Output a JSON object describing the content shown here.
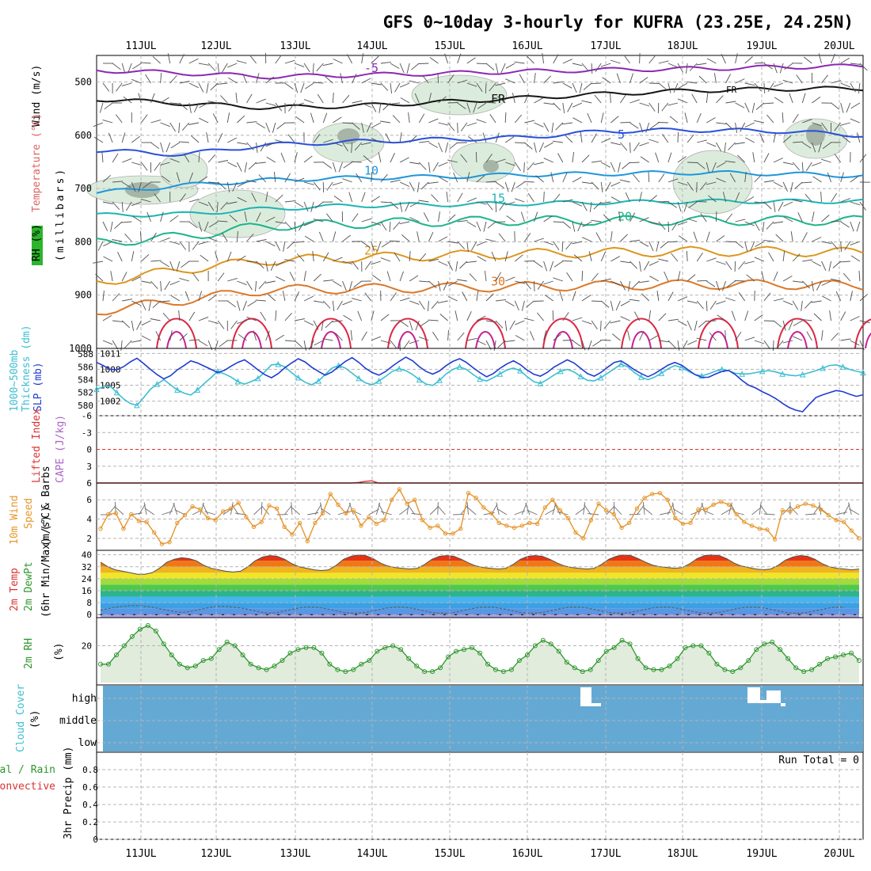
{
  "title": "GFS 0~10day 3-hourly for KUFRA (23.25E, 24.25N)",
  "days": [
    "11JUL",
    "12JUL",
    "13JUL",
    "14JUL",
    "15JUL",
    "16JUL",
    "17JUL",
    "18JUL",
    "19JUL",
    "20JUL"
  ],
  "colors": {
    "grid": "#b4b4b4",
    "slp": "#1e3cd2",
    "thickness": "#3cbed2",
    "wind_speed": "#e6962d",
    "rh": "#2d962d",
    "rh_fill": "#e1ecdc",
    "cloud_bg": "#64a9d4",
    "zero_line": "#dc3232",
    "li": "#dc3232",
    "barb": "#505050"
  },
  "labels": {
    "upper_axis": "(millibars)",
    "upper_wind": "Wind (m/s)",
    "upper_temp": "Temperature (°C)",
    "upper_rh": "RH (%)",
    "thick_a": "1000~500mb",
    "thick_b": "Thickness (dm)",
    "slp": "SLP (mb)",
    "li_a": "Lifted Index",
    "li_b": "CAPE (J/kg)",
    "wind_a": "10m Wind",
    "wind_b": "Speed",
    "wind_c": "(m/s) & Barbs",
    "temp_a": "2m Temp",
    "temp_b": "2m DewPt",
    "temp_c": "(6hr Min/Max) (°C)",
    "rh2_a": "2m RH",
    "rh2_b": "(%)",
    "cloud_a": "Cloud Cover",
    "cloud_b": "(%)",
    "precip_a": "Total / Rain",
    "precip_b": "Convective",
    "precip_c": "3hr Precip (mm)",
    "run_total": "Run Total = 0",
    "freezing": "FR"
  },
  "chart_data": [
    {
      "type": "line",
      "panel": "upper_air_cross_section",
      "ylabel": "(millibars)",
      "yticks": [
        500,
        600,
        700,
        800,
        900,
        1000
      ],
      "ylim": [
        1000,
        450
      ],
      "x": [
        "11JUL",
        "12JUL",
        "13JUL",
        "14JUL",
        "15JUL",
        "16JUL",
        "17JUL",
        "18JUL",
        "19JUL",
        "20JUL"
      ],
      "isotherms": [
        {
          "label": "-5",
          "color": "#8c28b4",
          "pressure": [
            478,
            483,
            490,
            487,
            484,
            480,
            477,
            475,
            472,
            470
          ]
        },
        {
          "label": "FR",
          "color": "#141414",
          "pressure": [
            532,
            540,
            548,
            545,
            538,
            530,
            522,
            516,
            513,
            512
          ]
        },
        {
          "label": "5",
          "color": "#2850dc",
          "pressure": [
            628,
            636,
            618,
            612,
            608,
            604,
            592,
            590,
            592,
            600
          ]
        },
        {
          "label": "10",
          "color": "#1e96dc",
          "pressure": [
            708,
            694,
            684,
            680,
            678,
            674,
            672,
            670,
            672,
            676
          ]
        },
        {
          "label": "15",
          "color": "#1eb4b4",
          "pressure": [
            750,
            748,
            738,
            732,
            730,
            728,
            726,
            724,
            724,
            724
          ]
        },
        {
          "label": "20",
          "color": "#1eb48c",
          "pressure": [
            802,
            790,
            770,
            766,
            762,
            760,
            760,
            760,
            760,
            760
          ]
        },
        {
          "label": "25",
          "color": "#dc961e",
          "pressure": [
            876,
            852,
            835,
            830,
            826,
            822,
            820,
            818,
            818,
            820
          ]
        },
        {
          "label": "30",
          "color": "#dc7828",
          "pressure": [
            930,
            910,
            890,
            888,
            886,
            884,
            882,
            880,
            880,
            882
          ]
        }
      ],
      "rh_contours": [
        "10",
        "30"
      ]
    },
    {
      "type": "line",
      "panel": "thickness_slp",
      "series": [
        {
          "name": "1000~500mb Thickness (dm)",
          "yticks": [
            580,
            582,
            584,
            586,
            588
          ],
          "values": [
            582.5,
            582.9,
            583.0,
            582.0,
            581.0,
            580.3,
            580.0,
            581.2,
            582.5,
            583.3,
            584.0,
            583.2,
            582.4,
            581.9,
            581.6,
            582.4,
            583.4,
            584.3,
            585.3,
            584.9,
            584.4,
            583.7,
            583.3,
            583.7,
            584.2,
            585.2,
            586.3,
            586.4,
            586.0,
            585.1,
            584.3,
            583.6,
            583.2,
            583.8,
            584.8,
            585.8,
            586.2,
            585.8,
            585.0,
            584.2,
            583.5,
            583.2,
            583.8,
            584.5,
            585.3,
            585.7,
            585.4,
            584.8,
            584.0,
            583.3,
            583.1,
            583.9,
            584.9,
            585.6,
            586.0,
            585.6,
            584.8,
            584.1,
            583.8,
            584.3,
            584.9,
            585.5,
            585.8,
            585.4,
            584.5,
            583.7,
            583.4,
            584.0,
            584.7,
            585.3,
            585.6,
            585.2,
            584.5,
            583.9,
            583.8,
            584.3,
            585.0,
            585.7,
            586.4,
            586.0,
            585.1,
            584.4,
            584.0,
            584.4,
            585.0,
            585.7,
            586.2,
            585.9,
            585.3,
            584.8,
            584.6,
            584.9,
            585.3,
            585.6,
            585.4,
            585.0,
            584.9,
            584.9,
            585.1,
            585.3,
            585.4,
            585.2,
            584.9,
            584.7,
            584.6,
            584.8,
            585.1,
            585.4,
            585.8,
            586.2,
            586.3,
            586.0,
            585.6,
            585.3,
            585.1
          ]
        },
        {
          "name": "SLP (mb)",
          "yticks": [
            1002,
            1005,
            1008,
            1011
          ],
          "values": [
            1009.3,
            1008.7,
            1008.0,
            1007.9,
            1008.5,
            1009.4,
            1010.1,
            1009.1,
            1008.0,
            1007.0,
            1006.2,
            1006.8,
            1007.9,
            1008.7,
            1009.6,
            1009.2,
            1008.6,
            1008.0,
            1007.4,
            1007.8,
            1008.6,
            1009.3,
            1009.8,
            1008.9,
            1007.9,
            1007.0,
            1006.4,
            1007.2,
            1008.3,
            1009.2,
            1010.0,
            1009.4,
            1008.4,
            1007.6,
            1006.9,
            1007.5,
            1008.5,
            1009.5,
            1010.2,
            1009.3,
            1008.2,
            1007.4,
            1006.9,
            1007.6,
            1008.6,
            1009.5,
            1010.3,
            1009.6,
            1008.5,
            1007.6,
            1007.1,
            1007.7,
            1008.7,
            1009.5,
            1010.0,
            1009.3,
            1008.3,
            1007.4,
            1006.6,
            1007.2,
            1008.2,
            1009.0,
            1009.6,
            1008.9,
            1007.9,
            1007.1,
            1006.7,
            1007.4,
            1008.4,
            1009.1,
            1009.8,
            1009.2,
            1008.2,
            1007.2,
            1006.7,
            1007.4,
            1008.4,
            1009.3,
            1009.6,
            1008.8,
            1007.9,
            1007.2,
            1006.6,
            1007.2,
            1008.0,
            1008.8,
            1009.3,
            1008.8,
            1007.9,
            1007.0,
            1006.5,
            1006.5,
            1007.1,
            1007.6,
            1007.8,
            1007.0,
            1005.9,
            1005.0,
            1004.5,
            1003.8,
            1003.2,
            1002.5,
            1001.6,
            1000.8,
            1000.3,
            1000.0,
            1001.4,
            1002.7,
            1003.2,
            1003.6,
            1004.0,
            1003.8,
            1003.3,
            1002.9,
            1003.2
          ]
        }
      ]
    },
    {
      "type": "line",
      "panel": "lifted_index_cape",
      "yticks": [
        -6,
        -3,
        0,
        3,
        6
      ],
      "ylim": [
        6,
        -6
      ],
      "series": [
        {
          "name": "Lifted Index",
          "values": [
            6,
            6,
            6,
            6,
            6,
            6,
            6,
            6,
            6,
            6,
            6,
            6,
            6,
            6,
            6,
            6,
            6,
            6,
            6,
            6,
            6,
            6,
            6,
            6,
            6,
            6,
            6,
            6,
            6,
            6,
            6,
            6,
            6,
            6,
            6,
            6,
            6,
            6,
            6,
            6,
            5.9,
            5.7,
            5.6,
            6,
            6,
            6,
            6,
            6,
            6,
            6,
            6,
            6,
            6,
            6,
            6,
            6,
            6,
            6,
            6,
            6,
            6,
            6,
            6,
            6,
            6,
            6,
            6,
            6,
            6,
            6,
            6,
            6,
            6,
            6,
            6,
            6,
            6,
            6,
            6,
            6,
            6,
            6,
            6,
            6,
            6,
            6,
            6,
            6,
            6,
            6,
            6,
            6,
            6,
            6,
            6,
            6,
            6,
            6,
            6,
            6,
            6,
            6,
            6,
            6,
            6,
            6,
            6,
            6,
            6,
            6,
            6,
            6,
            6,
            6,
            6,
            6,
            6,
            6
          ]
        }
      ]
    },
    {
      "type": "line",
      "panel": "wind_10m",
      "ylabel": "(m/s)",
      "yticks": [
        2,
        4,
        6
      ],
      "ylim": [
        1,
        7.5
      ],
      "series": [
        {
          "name": "10m Wind Speed",
          "values": [
            3.0,
            4.5,
            4.6,
            3.0,
            4.5,
            3.8,
            3.7,
            2.6,
            1.4,
            1.6,
            3.6,
            4.4,
            5.3,
            5.0,
            4.1,
            3.9,
            4.8,
            5.1,
            5.7,
            4.2,
            3.2,
            3.7,
            5.4,
            5.1,
            3.2,
            2.4,
            3.6,
            1.7,
            3.6,
            4.6,
            6.6,
            5.5,
            4.6,
            4.9,
            3.3,
            4.2,
            3.5,
            3.9,
            6.0,
            7.1,
            5.6,
            6.0,
            3.9,
            3.1,
            3.3,
            2.5,
            2.5,
            3.0,
            6.7,
            6.2,
            5.2,
            4.6,
            3.6,
            3.3,
            3.1,
            3.3,
            3.6,
            3.5,
            5.2,
            6.0,
            4.9,
            4.1,
            2.6,
            2.0,
            3.9,
            5.6,
            4.9,
            4.5,
            3.1,
            3.6,
            5.1,
            6.2,
            6.6,
            6.7,
            6.0,
            4.1,
            3.5,
            3.6,
            5.0,
            5.0,
            5.5,
            5.8,
            5.5,
            4.5,
            3.7,
            3.3,
            3.0,
            2.9,
            1.9,
            4.9,
            4.8,
            5.3,
            5.6,
            5.4,
            5.0,
            4.4,
            3.9,
            3.7,
            2.8,
            2.0
          ]
        }
      ]
    },
    {
      "type": "area",
      "panel": "temp_2m",
      "ylabel": "(°C)",
      "yticks": [
        0,
        8,
        16,
        24,
        32,
        40
      ],
      "ylim": [
        -2,
        43
      ],
      "series": [
        {
          "name": "2m Temp",
          "values": [
            35,
            32,
            30,
            29,
            28,
            27,
            27,
            28,
            31,
            35,
            37,
            38,
            37.5,
            36,
            33,
            31,
            30,
            29,
            28.5,
            29,
            32,
            36,
            38.5,
            39.5,
            39,
            37,
            34,
            32,
            31,
            30,
            29.5,
            30,
            33,
            37,
            39,
            40,
            39.5,
            37.5,
            34.5,
            32.5,
            31.5,
            31,
            30.5,
            31,
            33.5,
            37,
            39,
            39.5,
            39,
            37,
            34.5,
            32.5,
            31.5,
            31,
            30.5,
            31,
            33.5,
            37,
            39,
            39.5,
            39,
            37,
            34.5,
            32.5,
            31.5,
            31,
            30.5,
            31,
            33.5,
            37,
            39,
            40,
            39.5,
            37.5,
            35,
            33,
            32,
            31.5,
            31,
            31.5,
            34,
            37.5,
            39.5,
            40,
            39.5,
            37.5,
            34.5,
            32.5,
            31.5,
            30.5,
            30,
            30.5,
            33,
            36.5,
            38.5,
            39.5,
            39,
            37,
            34,
            32,
            31,
            30.5,
            30,
            30.5
          ]
        },
        {
          "name": "2m DewPt",
          "values": [
            3,
            4,
            5,
            5.5,
            6,
            6,
            5.5,
            5,
            4,
            3,
            2,
            1.5,
            2,
            3,
            4,
            5,
            5.5,
            5.5,
            5,
            4.5,
            3.5,
            2.5,
            1.5,
            1,
            1.5,
            2.5,
            3.5,
            4.5,
            5,
            5,
            4.5,
            3.5,
            2.5,
            1.5,
            1,
            1,
            1.5,
            2.5,
            3.5,
            4.5,
            5,
            5,
            4.5,
            3.5,
            2.5,
            1.5,
            1,
            1,
            1.5,
            2.5,
            3.5,
            4.5,
            5,
            5,
            4.5,
            3.5,
            2.5,
            1.5,
            1,
            1,
            1.5,
            2.5,
            3.5,
            4.5,
            5,
            5,
            4.5,
            3.5,
            2.5,
            1.5,
            1,
            1,
            1.5,
            2.5,
            3.5,
            4.5,
            5,
            5,
            4.5,
            3.5,
            2.5,
            1.5,
            1,
            1,
            1.5,
            2.5,
            3.5,
            4.5,
            5,
            5,
            4.5,
            3.5,
            2.5,
            1.5,
            1,
            1,
            1.5,
            2.5,
            3.5,
            4.5,
            5,
            5
          ]
        }
      ]
    },
    {
      "type": "line",
      "panel": "rh_2m",
      "ylabel": "(%)",
      "yticks": [
        20
      ],
      "ylim": [
        0,
        34
      ],
      "series": [
        {
          "name": "2m RH",
          "values": [
            10,
            10,
            15,
            20,
            25,
            29,
            31,
            28,
            21,
            15,
            10,
            8,
            9,
            12,
            13,
            18,
            22,
            20,
            15,
            10,
            8,
            7,
            9,
            12,
            16,
            18,
            19,
            19,
            16,
            10,
            7,
            6,
            7,
            10,
            12,
            17,
            19,
            20,
            18,
            13,
            9,
            6,
            6,
            8,
            14,
            17,
            18,
            19,
            16,
            10,
            7,
            6,
            7,
            12,
            15,
            20,
            23,
            21,
            17,
            11,
            8,
            6,
            7,
            12,
            17,
            19,
            23,
            21,
            13,
            8,
            7,
            7,
            9,
            13,
            19,
            20,
            20,
            16,
            10,
            7,
            6,
            8,
            12,
            18,
            21,
            22,
            18,
            13,
            8,
            6,
            7,
            10,
            13,
            14,
            15,
            16,
            12
          ]
        }
      ]
    },
    {
      "type": "bar",
      "panel": "cloud_cover",
      "ylabel": "(%)",
      "categories": [
        "high",
        "middle",
        "low"
      ],
      "series": [
        {
          "name": "high cloud gaps",
          "at": [
            "16JUL 15Z",
            "18JUL 18Z",
            "19JUL 03Z"
          ]
        }
      ]
    },
    {
      "type": "bar",
      "panel": "precip_3hr",
      "ylabel": "3hr Precip (mm)",
      "yticks": [
        0,
        0.2,
        0.4,
        0.6,
        0.8
      ],
      "ylim": [
        0,
        1
      ],
      "series": [
        {
          "name": "Total / Rain",
          "values": []
        },
        {
          "name": "Convective",
          "values": []
        }
      ]
    }
  ]
}
